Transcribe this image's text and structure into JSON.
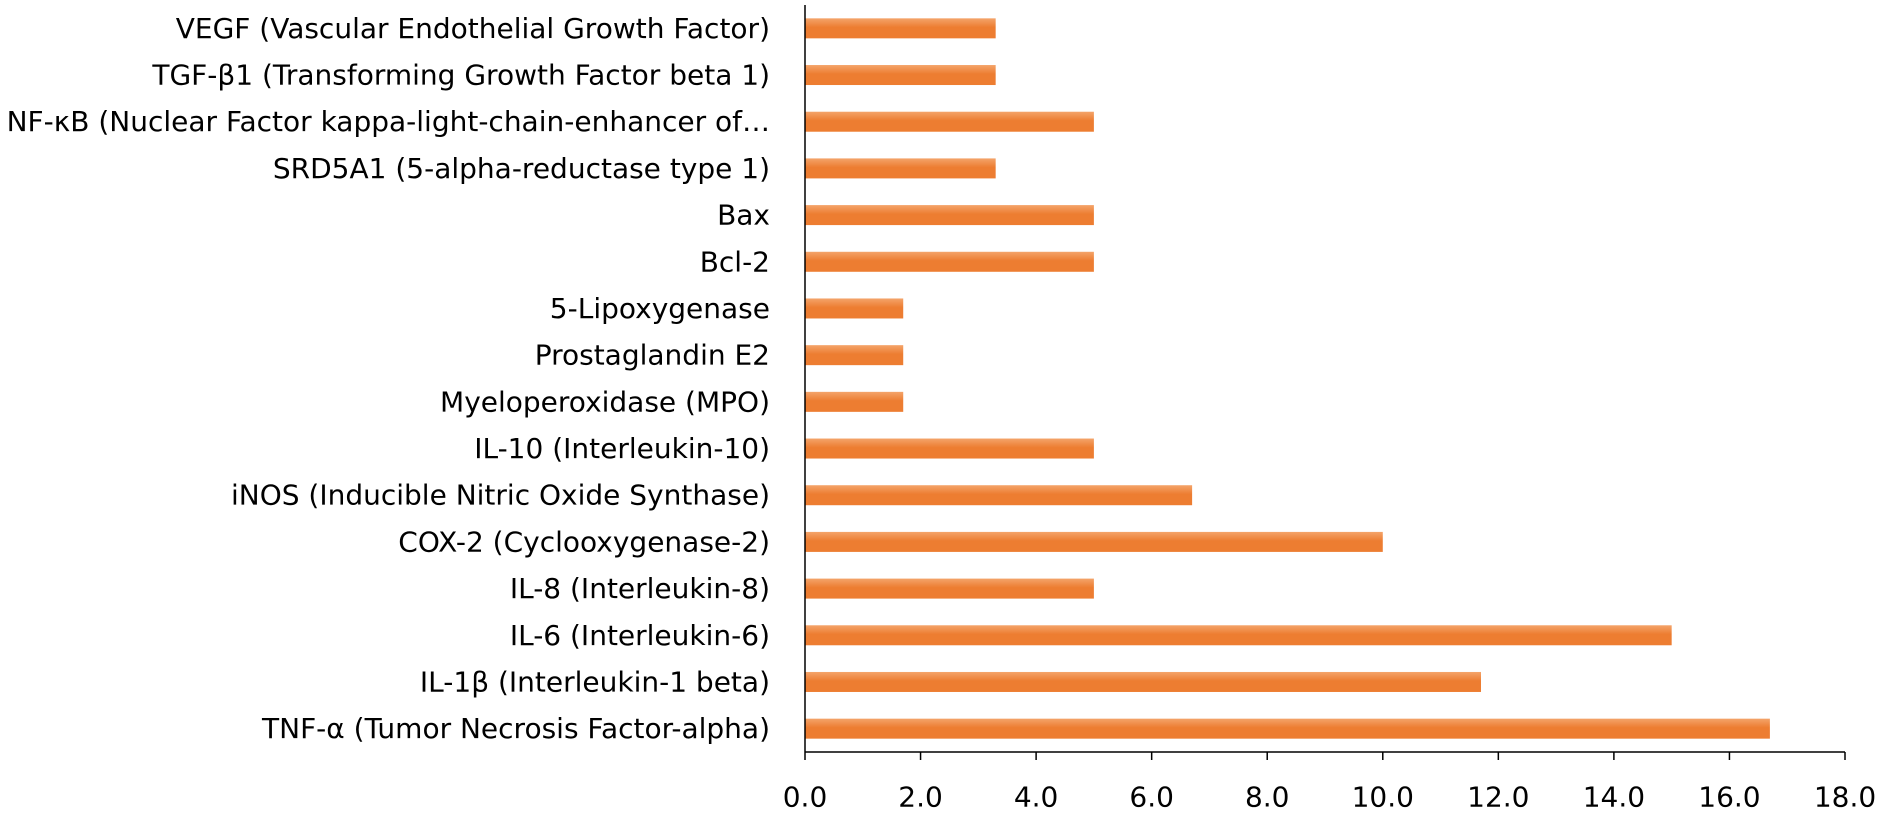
{
  "chart_data": {
    "type": "bar",
    "orientation": "horizontal",
    "title": "",
    "xlabel": "",
    "ylabel": "",
    "categories": [
      "TNF-α (Tumor Necrosis Factor-alpha)",
      "IL-1β (Interleukin-1 beta)",
      "IL-6 (Interleukin-6)",
      "IL-8 (Interleukin-8)",
      "COX-2 (Cyclooxygenase-2)",
      "iNOS (Inducible Nitric Oxide Synthase)",
      "IL-10 (Interleukin-10)",
      "Myeloperoxidase (MPO)",
      "Prostaglandin E2",
      "5-Lipoxygenase",
      "Bcl-2",
      "Bax",
      "SRD5A1 (5-alpha-reductase type 1)",
      "NF-κB (Nuclear Factor kappa-light-chain-enhancer of…",
      "TGF-β1 (Transforming Growth Factor beta 1)",
      "VEGF (Vascular Endothelial Growth Factor)"
    ],
    "values": [
      16.7,
      11.7,
      15.0,
      5.0,
      10.0,
      6.7,
      5.0,
      1.7,
      1.7,
      1.7,
      5.0,
      5.0,
      3.3,
      5.0,
      3.3,
      3.3
    ],
    "xlim": [
      0,
      18
    ],
    "x_ticks": [
      "0.0",
      "2.0",
      "4.0",
      "6.0",
      "8.0",
      "10.0",
      "12.0",
      "14.0",
      "16.0",
      "18.0"
    ],
    "grid": false,
    "legend": "none",
    "bar_color": "#ED7D31",
    "bar_color_light": "#F4A46A"
  }
}
